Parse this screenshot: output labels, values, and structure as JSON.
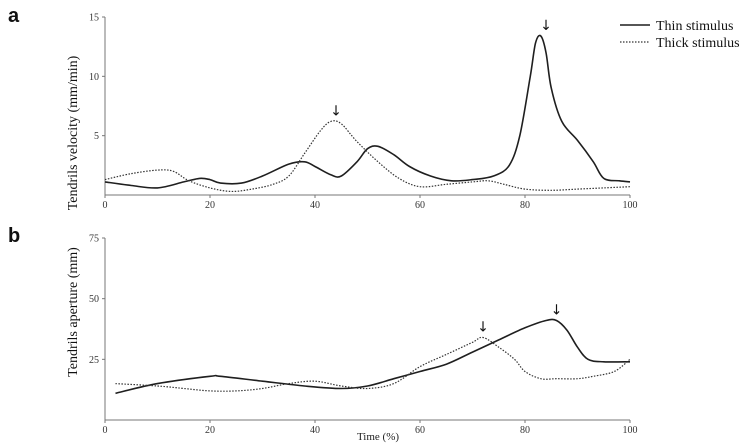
{
  "chart_data": [
    {
      "type": "line",
      "panel_label": "a",
      "xlabel": "",
      "ylabel": "Tendrils velocity (mm/min)",
      "xlim": [
        0,
        100
      ],
      "ylim": [
        0,
        15
      ],
      "x_ticks": [
        "0",
        "20",
        "40",
        "60",
        "80",
        "100"
      ],
      "y_ticks": [
        "5",
        "10",
        "15"
      ],
      "grid": false,
      "legend_position": "top-right",
      "series": [
        {
          "name": "Thin stimulus",
          "style": "solid",
          "points": [
            [
              0,
              1.1
            ],
            [
              5,
              0.8
            ],
            [
              10,
              0.6
            ],
            [
              15,
              1.1
            ],
            [
              18,
              1.4
            ],
            [
              20,
              1.3
            ],
            [
              22,
              1.0
            ],
            [
              26,
              1.0
            ],
            [
              30,
              1.6
            ],
            [
              35,
              2.6
            ],
            [
              38,
              2.8
            ],
            [
              40,
              2.4
            ],
            [
              43,
              1.7
            ],
            [
              45,
              1.6
            ],
            [
              48,
              2.8
            ],
            [
              50,
              3.9
            ],
            [
              52,
              4.1
            ],
            [
              55,
              3.4
            ],
            [
              58,
              2.4
            ],
            [
              62,
              1.6
            ],
            [
              66,
              1.2
            ],
            [
              70,
              1.3
            ],
            [
              74,
              1.6
            ],
            [
              77,
              2.5
            ],
            [
              79,
              5.0
            ],
            [
              81,
              10.0
            ],
            [
              82,
              12.8
            ],
            [
              83,
              13.4
            ],
            [
              84,
              12.0
            ],
            [
              85,
              9.0
            ],
            [
              87,
              6.2
            ],
            [
              90,
              4.6
            ],
            [
              93,
              2.8
            ],
            [
              95,
              1.4
            ],
            [
              98,
              1.2
            ],
            [
              100,
              1.1
            ]
          ]
        },
        {
          "name": "Thick stimulus",
          "style": "dotted",
          "points": [
            [
              0,
              1.3
            ],
            [
              5,
              1.8
            ],
            [
              10,
              2.1
            ],
            [
              13,
              2.0
            ],
            [
              16,
              1.2
            ],
            [
              20,
              0.6
            ],
            [
              24,
              0.3
            ],
            [
              28,
              0.5
            ],
            [
              32,
              0.9
            ],
            [
              35,
              1.6
            ],
            [
              38,
              3.5
            ],
            [
              41,
              5.4
            ],
            [
              43,
              6.2
            ],
            [
              45,
              6.0
            ],
            [
              48,
              4.5
            ],
            [
              52,
              2.8
            ],
            [
              56,
              1.4
            ],
            [
              60,
              0.7
            ],
            [
              65,
              0.9
            ],
            [
              70,
              1.1
            ],
            [
              73,
              1.2
            ],
            [
              76,
              0.9
            ],
            [
              80,
              0.5
            ],
            [
              85,
              0.4
            ],
            [
              90,
              0.5
            ],
            [
              95,
              0.6
            ],
            [
              100,
              0.7
            ]
          ]
        }
      ],
      "annotations": [
        {
          "text": "↓",
          "x": 44,
          "y": 6.2
        },
        {
          "text": "↓",
          "x": 84,
          "y": 13.4
        }
      ]
    },
    {
      "type": "line",
      "panel_label": "b",
      "xlabel": "Time  (%)",
      "ylabel": "Tendrils aperture (mm)",
      "xlim": [
        0,
        100
      ],
      "ylim": [
        0,
        75
      ],
      "x_ticks": [
        "0",
        "20",
        "40",
        "60",
        "80",
        "100"
      ],
      "y_ticks": [
        "25",
        "50",
        "75"
      ],
      "grid": false,
      "series": [
        {
          "name": "",
          "style": "solid",
          "points": [
            [
              2,
              11
            ],
            [
              10,
              15
            ],
            [
              20,
              18
            ],
            [
              22,
              18
            ],
            [
              30,
              16
            ],
            [
              38,
              14
            ],
            [
              45,
              13
            ],
            [
              50,
              14
            ],
            [
              55,
              17
            ],
            [
              60,
              20
            ],
            [
              65,
              23
            ],
            [
              70,
              28
            ],
            [
              75,
              33
            ],
            [
              80,
              38
            ],
            [
              84,
              41
            ],
            [
              86,
              41
            ],
            [
              88,
              37
            ],
            [
              90,
              30
            ],
            [
              92,
              25
            ],
            [
              95,
              24
            ],
            [
              100,
              24
            ]
          ]
        },
        {
          "name": "",
          "style": "dotted",
          "points": [
            [
              2,
              15
            ],
            [
              10,
              14
            ],
            [
              15,
              13
            ],
            [
              20,
              12
            ],
            [
              25,
              12
            ],
            [
              30,
              13
            ],
            [
              35,
              15
            ],
            [
              40,
              16
            ],
            [
              45,
              14
            ],
            [
              50,
              13
            ],
            [
              55,
              15
            ],
            [
              60,
              22
            ],
            [
              65,
              27
            ],
            [
              70,
              32
            ],
            [
              72,
              34
            ],
            [
              75,
              30
            ],
            [
              78,
              25
            ],
            [
              80,
              20
            ],
            [
              83,
              17
            ],
            [
              86,
              17
            ],
            [
              90,
              17
            ],
            [
              93,
              18
            ],
            [
              97,
              20
            ],
            [
              100,
              25
            ]
          ]
        }
      ],
      "annotations": [
        {
          "text": "↓",
          "x": 72,
          "y": 34
        },
        {
          "text": "↓",
          "x": 86,
          "y": 41
        }
      ]
    }
  ],
  "colors": {
    "line": "#1f1f1f",
    "axis": "#777777"
  }
}
